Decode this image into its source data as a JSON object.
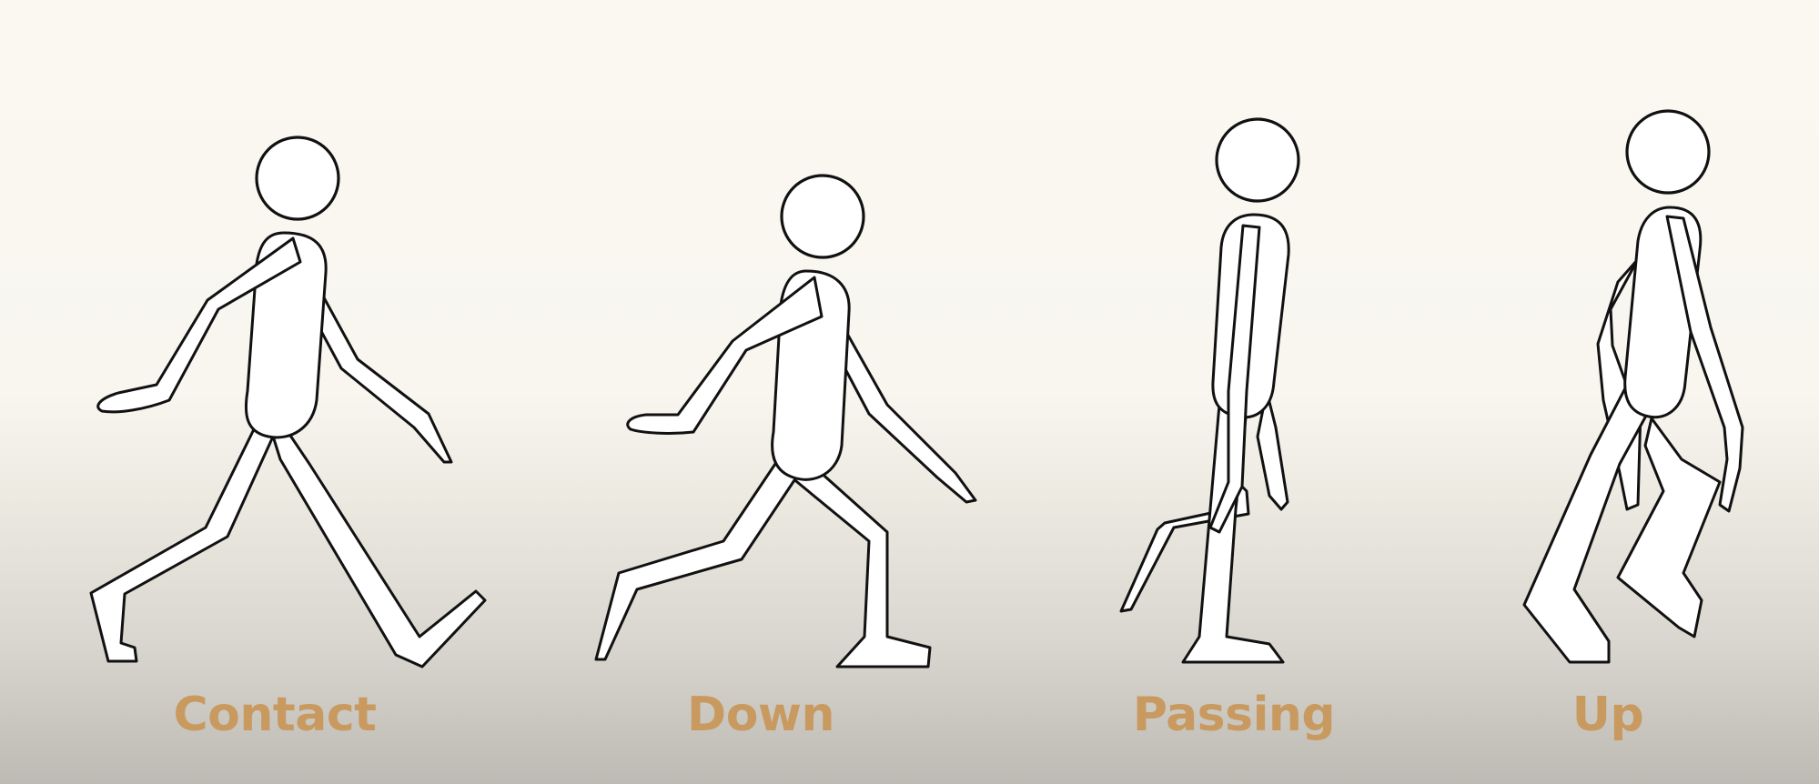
{
  "label_color": "#c99a60",
  "poses": [
    {
      "id": "contact",
      "label": "Contact"
    },
    {
      "id": "down",
      "label": "Down"
    },
    {
      "id": "passing",
      "label": "Passing"
    },
    {
      "id": "up",
      "label": "Up"
    }
  ]
}
